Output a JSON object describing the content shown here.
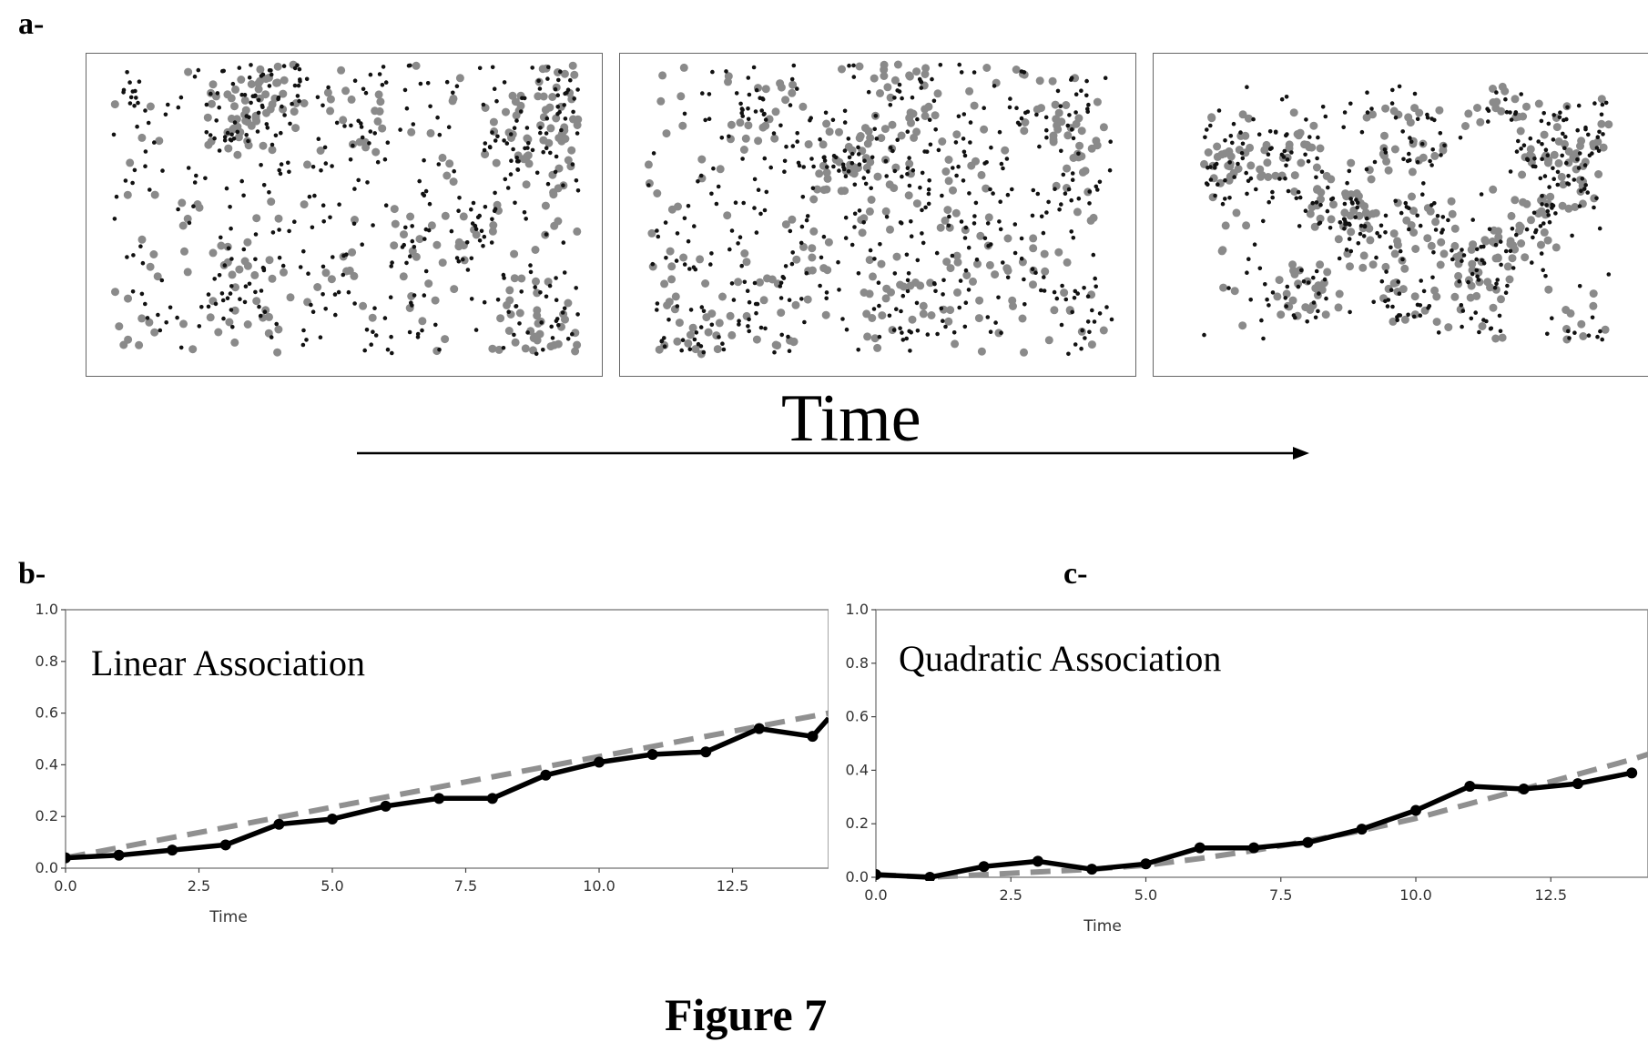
{
  "figure": {
    "panel_a_label": "a-",
    "panel_b_label": "b-",
    "panel_c_label": "c-",
    "time_label": "Time",
    "title": "Figure 7",
    "colors": {
      "black_dots": "#111111",
      "gray_dots": "#8a8a8a",
      "line": "#000000",
      "fit": "#909090"
    }
  },
  "chart_data": [
    {
      "type": "line",
      "title": "Linear Association",
      "xlabel": "Time",
      "ylabel": "",
      "xlim": [
        0,
        14.3
      ],
      "ylim": [
        0,
        1.0
      ],
      "xticks": [
        "0.0",
        "2.5",
        "5.0",
        "7.5",
        "10.0",
        "12.5"
      ],
      "yticks": [
        "0.0",
        "0.2",
        "0.4",
        "0.6",
        "0.8",
        "1.0"
      ],
      "x": [
        0,
        1,
        2,
        3,
        4,
        5,
        6,
        7,
        8,
        9,
        10,
        11,
        12,
        13,
        14,
        14.3
      ],
      "series": [
        {
          "values": [
            0.04,
            0.05,
            0.07,
            0.09,
            0.17,
            0.19,
            0.24,
            0.27,
            0.27,
            0.36,
            0.41,
            0.44,
            0.45,
            0.54,
            0.51,
            0.58
          ],
          "style": "solid-markers"
        }
      ],
      "fit": {
        "style": "dashed",
        "x": [
          0,
          14.3
        ],
        "values": [
          0.04,
          0.6
        ]
      }
    },
    {
      "type": "line",
      "title": "Quadratic Association",
      "xlabel": "Time",
      "ylabel": "",
      "xlim": [
        0,
        14.3
      ],
      "ylim": [
        0,
        1.0
      ],
      "xticks": [
        "0.0",
        "2.5",
        "5.0",
        "7.5",
        "10.0",
        "12.5"
      ],
      "yticks": [
        "0.0",
        "0.2",
        "0.4",
        "0.6",
        "0.8",
        "1.0"
      ],
      "x": [
        0,
        1,
        2,
        3,
        4,
        5,
        6,
        7,
        8,
        9,
        10,
        11,
        12,
        13,
        14
      ],
      "series": [
        {
          "values": [
            0.01,
            0.0,
            0.04,
            0.06,
            0.03,
            0.05,
            0.11,
            0.11,
            0.13,
            0.18,
            0.25,
            0.34,
            0.33,
            0.35,
            0.39
          ],
          "style": "solid-markers"
        }
      ],
      "fit": {
        "style": "dashed",
        "x": [
          0,
          0.5,
          1,
          1.5,
          2,
          3,
          4,
          5,
          6,
          7,
          8,
          9,
          10,
          11,
          12,
          13,
          14,
          14.3
        ],
        "values": [
          0.01,
          0.005,
          0.0,
          0.005,
          0.01,
          0.02,
          0.03,
          0.045,
          0.07,
          0.1,
          0.135,
          0.175,
          0.22,
          0.275,
          0.33,
          0.385,
          0.44,
          0.46
        ]
      }
    }
  ]
}
